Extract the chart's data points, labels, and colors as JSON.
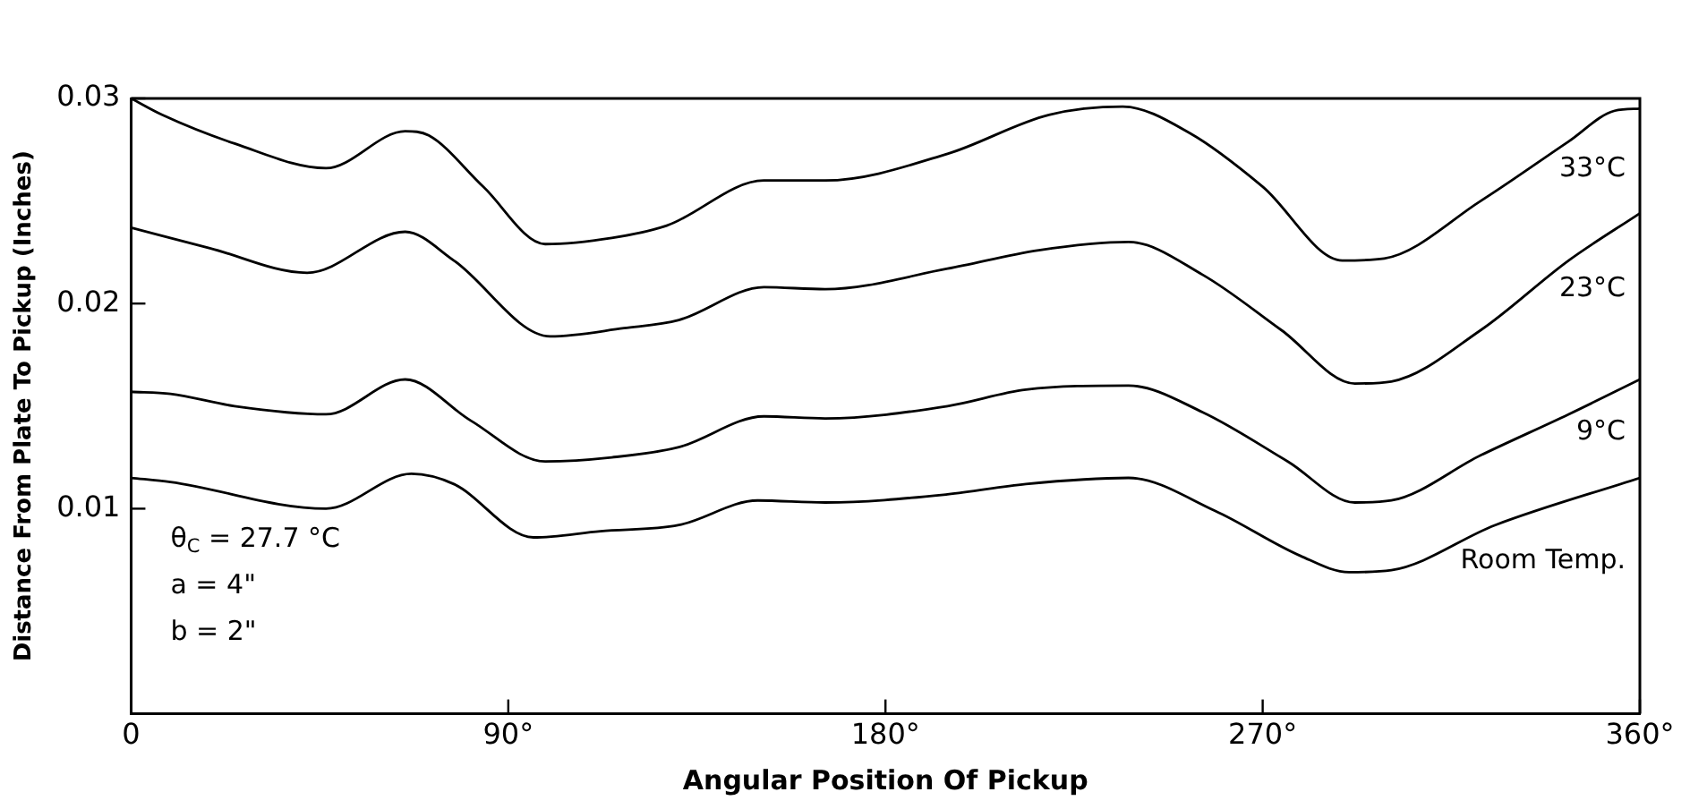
{
  "chart_data": {
    "type": "line",
    "xlabel": "Angular Position Of Pickup",
    "ylabel": "Distance From Plate To Pickup (Inches)",
    "xlim": [
      0,
      360
    ],
    "xticks": [
      {
        "value": 0,
        "label": "0"
      },
      {
        "value": 90,
        "label": "90°"
      },
      {
        "value": 180,
        "label": "180°"
      },
      {
        "value": 270,
        "label": "270°"
      },
      {
        "value": 360,
        "label": "360°"
      }
    ],
    "ylim": [
      0,
      0.03
    ],
    "yticks": [
      0.01,
      0.02,
      0.03
    ],
    "grid": false,
    "legend": false,
    "marker": "none",
    "line_style": "solid",
    "annotations": [
      "θ$_{C}$ = 27.7 °C",
      "a = 4\"",
      "b = 2\""
    ],
    "series": [
      {
        "name": "33°C",
        "color": "#000000",
        "x": [
          0,
          7.4,
          24.7,
          46.5,
          65.4,
          71,
          84,
          98.8,
          114.7,
          127.8,
          151,
          165.6,
          194.8,
          219,
          236.6,
          252.7,
          270,
          289,
          299,
          322,
          343,
          354,
          360
        ],
        "values": [
          0.03,
          0.0292,
          0.0278,
          0.0266,
          0.0284,
          0.0282,
          0.0257,
          0.0229,
          0.0232,
          0.0238,
          0.026,
          0.026,
          0.0273,
          0.0292,
          0.0296,
          0.0283,
          0.0257,
          0.0221,
          0.0222,
          0.025,
          0.0279,
          0.0294,
          0.0295
        ]
      },
      {
        "name": "23°C",
        "color": "#000000",
        "x": [
          0,
          18.8,
          42,
          65.4,
          77,
          100,
          117.6,
          130.7,
          151,
          165.6,
          194.8,
          216.6,
          238,
          255.7,
          274.5,
          292,
          300.7,
          322,
          343,
          360
        ],
        "values": [
          0.0237,
          0.0227,
          0.0215,
          0.0235,
          0.0221,
          0.0184,
          0.0188,
          0.0192,
          0.0208,
          0.0207,
          0.0217,
          0.0226,
          0.023,
          0.0214,
          0.0187,
          0.0161,
          0.0162,
          0.0187,
          0.0221,
          0.0244
        ]
      },
      {
        "name": "9°C",
        "color": "#000000",
        "x": [
          0,
          9.4,
          24.7,
          46.5,
          65.4,
          81,
          98.8,
          114.7,
          130.7,
          151,
          165.6,
          194.8,
          213.5,
          238,
          255.7,
          276,
          292,
          300.7,
          322,
          343,
          360
        ],
        "values": [
          0.0157,
          0.0156,
          0.015,
          0.0146,
          0.0163,
          0.0143,
          0.0123,
          0.0125,
          0.013,
          0.0145,
          0.0144,
          0.015,
          0.0158,
          0.016,
          0.0147,
          0.0123,
          0.0103,
          0.0104,
          0.0126,
          0.0146,
          0.0163
        ]
      },
      {
        "name": "Room Temp.",
        "color": "#000000",
        "x": [
          0,
          9.4,
          46.5,
          66.9,
          77,
          96,
          112,
          130.7,
          149.5,
          165.6,
          194.8,
          213.5,
          238,
          258.6,
          279,
          290.6,
          300.7,
          325.5,
          360
        ],
        "values": [
          0.0115,
          0.0113,
          0.01,
          0.0117,
          0.0112,
          0.0086,
          0.0089,
          0.0092,
          0.0104,
          0.0103,
          0.0107,
          0.0112,
          0.0115,
          0.0099,
          0.0077,
          0.0069,
          0.007,
          0.0092,
          0.0115
        ]
      }
    ]
  }
}
